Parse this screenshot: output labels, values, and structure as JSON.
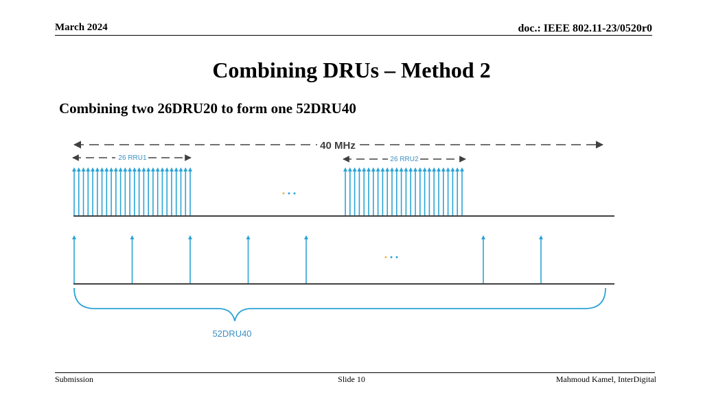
{
  "header": {
    "date": "March 2024",
    "doc": "doc.: IEEE 802.11-23/0520r0"
  },
  "slide": {
    "title": "Combining DRUs – Method 2",
    "subtitle": "Combining two 26DRU20 to form one 52DRU40"
  },
  "diagram": {
    "bandwidth_label": "40 MHz",
    "rru1_label": "26 RRU1",
    "rru2_label": "26 RRU2",
    "ellipsis_top": "· · ·",
    "ellipsis_bottom": "· · ·",
    "bracket_label": "52DRU40",
    "rru1_tone_count": 26,
    "rru2_tone_count": 26,
    "dru_tone_count_left": 5,
    "dru_tone_count_right": 2,
    "colors": {
      "arrow": "#2aa3d6",
      "text": "#3b8fc4",
      "line": "#404040",
      "dots_a": "#f0b14a",
      "dots_b": "#2aa3d6"
    }
  },
  "footer": {
    "left": "Submission",
    "center": "Slide 10",
    "right": "Mahmoud Kamel, InterDigital"
  }
}
